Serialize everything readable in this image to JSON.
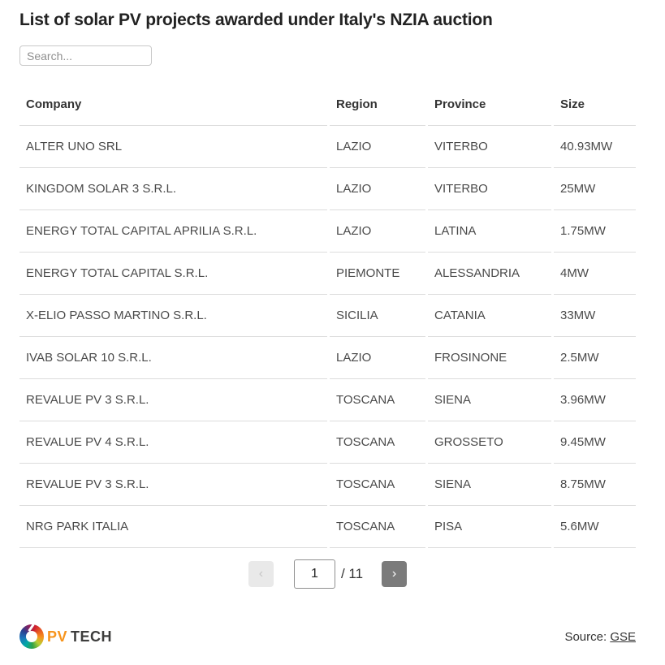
{
  "page": {
    "title": "List of solar PV projects awarded under Italy's NZIA auction"
  },
  "search": {
    "placeholder": "Search..."
  },
  "table": {
    "columns": [
      "Company",
      "Region",
      "Province",
      "Size"
    ],
    "rows": [
      {
        "company": "ALTER UNO SRL",
        "region": "LAZIO",
        "province": "VITERBO",
        "size": "40.93MW"
      },
      {
        "company": "KINGDOM SOLAR 3 S.R.L.",
        "region": "LAZIO",
        "province": "VITERBO",
        "size": "25MW"
      },
      {
        "company": "ENERGY TOTAL CAPITAL APRILIA S.R.L.",
        "region": "LAZIO",
        "province": "LATINA",
        "size": "1.75MW"
      },
      {
        "company": "ENERGY TOTAL CAPITAL S.R.L.",
        "region": "PIEMONTE",
        "province": "ALESSANDRIA",
        "size": "4MW"
      },
      {
        "company": "X-ELIO PASSO MARTINO S.R.L.",
        "region": "SICILIA",
        "province": "CATANIA",
        "size": "33MW"
      },
      {
        "company": "IVAB SOLAR 10 S.R.L.",
        "region": "LAZIO",
        "province": "FROSINONE",
        "size": "2.5MW"
      },
      {
        "company": "REVALUE PV 3 S.R.L.",
        "region": "TOSCANA",
        "province": "SIENA",
        "size": "3.96MW"
      },
      {
        "company": "REVALUE PV 4 S.R.L.",
        "region": "TOSCANA",
        "province": "GROSSETO",
        "size": "9.45MW"
      },
      {
        "company": "REVALUE PV 3 S.R.L.",
        "region": "TOSCANA",
        "province": "SIENA",
        "size": "8.75MW"
      },
      {
        "company": "NRG PARK ITALIA",
        "region": "TOSCANA",
        "province": "PISA",
        "size": "5.6MW"
      }
    ]
  },
  "pagination": {
    "prev_icon": "‹",
    "next_icon": "›",
    "current_page": "1",
    "page_total": "/ 11"
  },
  "footer": {
    "logo_pv": "PV",
    "logo_tech": "TECH",
    "source_label": "Source: ",
    "source_link": "GSE"
  },
  "colors": {
    "title_text": "#222222",
    "body_text": "#4a4a4a",
    "row_border": "#dcdcdc",
    "next_button_bg": "#7b7b7b",
    "prev_button_bg": "#e9e9e9",
    "logo_pv_orange": "#f7941d",
    "logo_tech_gray": "#3d3d3c"
  }
}
